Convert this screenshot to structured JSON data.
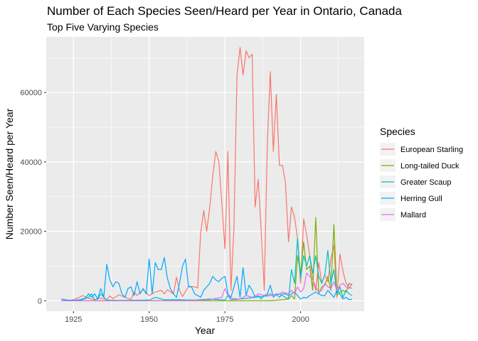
{
  "chart_data": {
    "type": "line",
    "title": "Number of Each Species Seen/Heard per Year in Ontario, Canada",
    "subtitle": "Top Five Varying Species",
    "xlabel": "Year",
    "ylabel": "Number Seen/Heard per Year",
    "xlim": [
      1916,
      2021
    ],
    "ylim": [
      -3000,
      76000
    ],
    "xticks": [
      1925,
      1950,
      1975,
      2000
    ],
    "yticks": [
      0,
      20000,
      40000,
      60000
    ],
    "ytick_labels": [
      "0",
      "20000",
      "40000",
      "60000"
    ],
    "grid": true,
    "legend_title": "Species",
    "legend_position": "right",
    "series": [
      {
        "name": "European Starling",
        "color": "#F8766D",
        "points": [
          [
            1921,
            0
          ],
          [
            1923,
            0
          ],
          [
            1925,
            300
          ],
          [
            1927,
            1000
          ],
          [
            1928,
            1500
          ],
          [
            1930,
            700
          ],
          [
            1932,
            300
          ],
          [
            1934,
            800
          ],
          [
            1936,
            300
          ],
          [
            1937,
            1400
          ],
          [
            1938,
            600
          ],
          [
            1940,
            1700
          ],
          [
            1942,
            1000
          ],
          [
            1944,
            400
          ],
          [
            1945,
            2500
          ],
          [
            1946,
            1500
          ],
          [
            1948,
            3200
          ],
          [
            1950,
            1500
          ],
          [
            1952,
            2500
          ],
          [
            1954,
            3000
          ],
          [
            1955,
            2000
          ],
          [
            1956,
            3200
          ],
          [
            1958,
            2000
          ],
          [
            1959,
            6800
          ],
          [
            1960,
            3000
          ],
          [
            1961,
            1200
          ],
          [
            1963,
            4200
          ],
          [
            1965,
            4000
          ],
          [
            1966,
            3700
          ],
          [
            1967,
            19500
          ],
          [
            1968,
            26000
          ],
          [
            1969,
            20000
          ],
          [
            1970,
            27000
          ],
          [
            1971,
            36000
          ],
          [
            1972,
            43000
          ],
          [
            1973,
            40000
          ],
          [
            1974,
            28000
          ],
          [
            1975,
            15000
          ],
          [
            1976,
            43000
          ],
          [
            1977,
            3000
          ],
          [
            1978,
            21000
          ],
          [
            1979,
            65000
          ],
          [
            1980,
            73000
          ],
          [
            1981,
            65000
          ],
          [
            1982,
            72000
          ],
          [
            1983,
            70000
          ],
          [
            1984,
            71000
          ],
          [
            1985,
            27000
          ],
          [
            1986,
            35000
          ],
          [
            1987,
            20000
          ],
          [
            1988,
            3000
          ],
          [
            1989,
            45000
          ],
          [
            1990,
            66000
          ],
          [
            1991,
            43000
          ],
          [
            1992,
            59500
          ],
          [
            1993,
            39000
          ],
          [
            1994,
            39000
          ],
          [
            1995,
            34000
          ],
          [
            1996,
            17000
          ],
          [
            1997,
            27000
          ],
          [
            1998,
            24000
          ],
          [
            1999,
            18000
          ],
          [
            2000,
            5000
          ],
          [
            2001,
            23500
          ],
          [
            2002,
            19000
          ],
          [
            2003,
            13000
          ],
          [
            2004,
            6000
          ],
          [
            2005,
            3000
          ],
          [
            2006,
            11000
          ],
          [
            2007,
            5000
          ],
          [
            2008,
            7500
          ],
          [
            2009,
            5500
          ],
          [
            2010,
            12000
          ],
          [
            2011,
            16000
          ],
          [
            2012,
            1000
          ],
          [
            2013,
            13500
          ],
          [
            2014,
            8500
          ],
          [
            2015,
            5000
          ],
          [
            2016,
            4000
          ],
          [
            2017,
            3500
          ]
        ]
      },
      {
        "name": "Long-tailed Duck",
        "color": "#7CAE00",
        "points": [
          [
            1921,
            0
          ],
          [
            1940,
            0
          ],
          [
            1960,
            0
          ],
          [
            1975,
            0
          ],
          [
            1978,
            0
          ],
          [
            1980,
            0
          ],
          [
            1985,
            0
          ],
          [
            1990,
            0
          ],
          [
            1994,
            300
          ],
          [
            1996,
            500
          ],
          [
            1997,
            1500
          ],
          [
            1998,
            500
          ],
          [
            1999,
            13000
          ],
          [
            2000,
            8000
          ],
          [
            2001,
            17000
          ],
          [
            2002,
            9000
          ],
          [
            2003,
            10000
          ],
          [
            2004,
            3000
          ],
          [
            2005,
            24000
          ],
          [
            2006,
            2000
          ],
          [
            2007,
            4000
          ],
          [
            2008,
            4500
          ],
          [
            2009,
            7000
          ],
          [
            2010,
            3000
          ],
          [
            2011,
            22000
          ],
          [
            2012,
            1500
          ],
          [
            2013,
            2500
          ],
          [
            2014,
            3000
          ],
          [
            2015,
            2500
          ],
          [
            2016,
            5000
          ],
          [
            2017,
            4500
          ]
        ]
      },
      {
        "name": "Greater Scaup",
        "color": "#00BFC4",
        "points": [
          [
            1921,
            0
          ],
          [
            1927,
            0
          ],
          [
            1930,
            1000
          ],
          [
            1931,
            2000
          ],
          [
            1932,
            300
          ],
          [
            1933,
            500
          ],
          [
            1934,
            2000
          ],
          [
            1936,
            200
          ],
          [
            1940,
            100
          ],
          [
            1950,
            200
          ],
          [
            1952,
            1000
          ],
          [
            1955,
            300
          ],
          [
            1960,
            300
          ],
          [
            1965,
            200
          ],
          [
            1970,
            500
          ],
          [
            1975,
            200
          ],
          [
            1976,
            1500
          ],
          [
            1977,
            300
          ],
          [
            1980,
            500
          ],
          [
            1985,
            1000
          ],
          [
            1990,
            1500
          ],
          [
            1993,
            2000
          ],
          [
            1995,
            1000
          ],
          [
            1996,
            500
          ],
          [
            1997,
            9000
          ],
          [
            1998,
            5000
          ],
          [
            1999,
            18000
          ],
          [
            2000,
            6500
          ],
          [
            2001,
            13000
          ],
          [
            2002,
            10000
          ],
          [
            2003,
            13000
          ],
          [
            2004,
            8000
          ],
          [
            2005,
            13000
          ],
          [
            2006,
            7000
          ],
          [
            2007,
            5000
          ],
          [
            2008,
            7500
          ],
          [
            2009,
            14500
          ],
          [
            2010,
            5000
          ],
          [
            2011,
            9000
          ],
          [
            2012,
            2000
          ],
          [
            2013,
            4000
          ],
          [
            2014,
            1000
          ],
          [
            2015,
            3000
          ],
          [
            2016,
            2000
          ],
          [
            2017,
            1500
          ]
        ]
      },
      {
        "name": "Herring Gull",
        "color": "#00A9FF",
        "points": [
          [
            1921,
            500
          ],
          [
            1923,
            200
          ],
          [
            1925,
            100
          ],
          [
            1927,
            300
          ],
          [
            1929,
            800
          ],
          [
            1930,
            2000
          ],
          [
            1931,
            1000
          ],
          [
            1932,
            2000
          ],
          [
            1933,
            500
          ],
          [
            1934,
            3500
          ],
          [
            1935,
            1000
          ],
          [
            1936,
            10500
          ],
          [
            1937,
            6000
          ],
          [
            1938,
            4000
          ],
          [
            1939,
            5500
          ],
          [
            1940,
            5000
          ],
          [
            1941,
            2000
          ],
          [
            1942,
            1000
          ],
          [
            1943,
            3500
          ],
          [
            1944,
            4000
          ],
          [
            1945,
            1500
          ],
          [
            1946,
            5500
          ],
          [
            1947,
            2000
          ],
          [
            1948,
            3500
          ],
          [
            1949,
            2000
          ],
          [
            1950,
            12000
          ],
          [
            1951,
            2000
          ],
          [
            1952,
            11000
          ],
          [
            1953,
            9000
          ],
          [
            1954,
            9000
          ],
          [
            1955,
            12500
          ],
          [
            1956,
            6500
          ],
          [
            1957,
            3500
          ],
          [
            1958,
            2000
          ],
          [
            1959,
            1000
          ],
          [
            1960,
            5000
          ],
          [
            1961,
            10000
          ],
          [
            1962,
            12000
          ],
          [
            1963,
            4000
          ],
          [
            1964,
            4000
          ],
          [
            1965,
            2000
          ],
          [
            1966,
            1500
          ],
          [
            1967,
            1000
          ],
          [
            1968,
            3000
          ],
          [
            1969,
            4000
          ],
          [
            1970,
            5000
          ],
          [
            1971,
            7000
          ],
          [
            1972,
            6000
          ],
          [
            1973,
            5500
          ],
          [
            1974,
            6500
          ],
          [
            1975,
            7000
          ],
          [
            1976,
            2000
          ],
          [
            1977,
            1000
          ],
          [
            1978,
            4000
          ],
          [
            1979,
            7000
          ],
          [
            1980,
            1000
          ],
          [
            1981,
            9500
          ],
          [
            1982,
            1500
          ],
          [
            1983,
            4500
          ],
          [
            1984,
            3000
          ],
          [
            1985,
            1000
          ],
          [
            1986,
            1500
          ],
          [
            1987,
            500
          ],
          [
            1988,
            1500
          ],
          [
            1989,
            2000
          ],
          [
            1990,
            4500
          ],
          [
            1991,
            1000
          ],
          [
            1992,
            2000
          ],
          [
            1993,
            1000
          ],
          [
            1994,
            2000
          ],
          [
            1995,
            2000
          ],
          [
            1996,
            1500
          ],
          [
            1997,
            2000
          ],
          [
            1998,
            2500
          ],
          [
            1999,
            1500
          ],
          [
            2000,
            500
          ],
          [
            2001,
            1000
          ],
          [
            2002,
            800
          ],
          [
            2003,
            1500
          ],
          [
            2004,
            2000
          ],
          [
            2005,
            2500
          ],
          [
            2006,
            2000
          ],
          [
            2007,
            1500
          ],
          [
            2008,
            1500
          ],
          [
            2009,
            3000
          ],
          [
            2010,
            2000
          ],
          [
            2011,
            1000
          ],
          [
            2012,
            3000
          ],
          [
            2013,
            2000
          ],
          [
            2014,
            500
          ],
          [
            2015,
            1000
          ],
          [
            2016,
            300
          ],
          [
            2017,
            500
          ]
        ]
      },
      {
        "name": "Mallard",
        "color": "#E76BF3",
        "points": [
          [
            1921,
            0
          ],
          [
            1930,
            0
          ],
          [
            1940,
            0
          ],
          [
            1950,
            0
          ],
          [
            1960,
            0
          ],
          [
            1965,
            100
          ],
          [
            1970,
            300
          ],
          [
            1974,
            1000
          ],
          [
            1975,
            3500
          ],
          [
            1976,
            1500
          ],
          [
            1977,
            800
          ],
          [
            1978,
            600
          ],
          [
            1980,
            500
          ],
          [
            1982,
            1500
          ],
          [
            1984,
            1000
          ],
          [
            1986,
            2000
          ],
          [
            1988,
            1500
          ],
          [
            1990,
            2000
          ],
          [
            1992,
            1500
          ],
          [
            1994,
            2500
          ],
          [
            1996,
            2000
          ],
          [
            1997,
            3000
          ],
          [
            1998,
            2000
          ],
          [
            1999,
            4000
          ],
          [
            2000,
            2500
          ],
          [
            2001,
            3500
          ],
          [
            2002,
            8000
          ],
          [
            2003,
            7000
          ],
          [
            2004,
            6000
          ],
          [
            2005,
            4000
          ],
          [
            2006,
            2500
          ],
          [
            2007,
            3000
          ],
          [
            2008,
            5000
          ],
          [
            2009,
            4000
          ],
          [
            2010,
            3500
          ],
          [
            2011,
            5500
          ],
          [
            2012,
            3000
          ],
          [
            2013,
            4500
          ],
          [
            2014,
            5000
          ],
          [
            2015,
            4000
          ],
          [
            2016,
            3500
          ],
          [
            2017,
            5000
          ]
        ]
      }
    ]
  }
}
